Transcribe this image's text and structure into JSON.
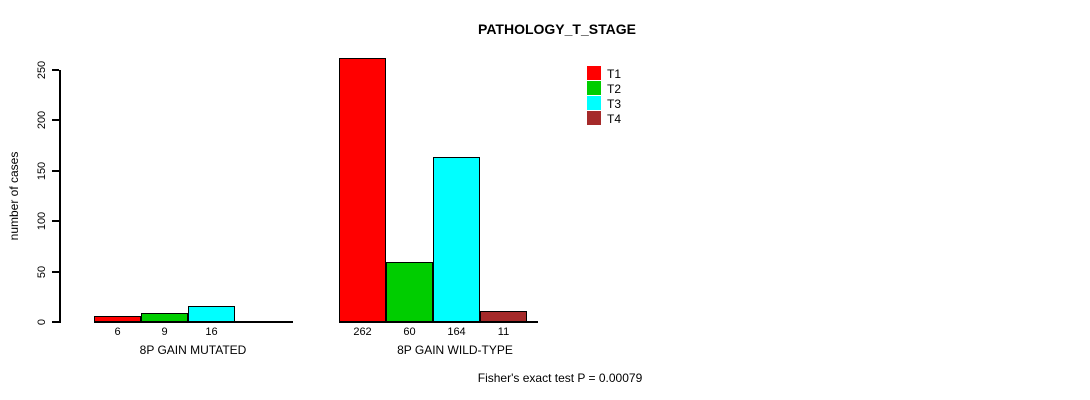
{
  "chart_data": {
    "type": "bar",
    "title": "PATHOLOGY_T_STAGE",
    "ylabel": "number of cases",
    "xlabel": "",
    "ylim": [
      0,
      250
    ],
    "yticks": [
      0,
      50,
      100,
      150,
      200,
      250
    ],
    "grid": false,
    "legend_position": "top-right",
    "categories": [
      "8P GAIN MUTATED",
      "8P GAIN WILD-TYPE"
    ],
    "series": [
      {
        "name": "T1",
        "color": "#FF0000",
        "values": [
          6,
          262
        ]
      },
      {
        "name": "T2",
        "color": "#00CD00",
        "values": [
          9,
          60
        ]
      },
      {
        "name": "T3",
        "color": "#00FFFF",
        "values": [
          16,
          164
        ]
      },
      {
        "name": "T4",
        "color": "#A52A2A",
        "values": [
          0,
          11
        ]
      }
    ],
    "bar_value_labels": [
      [
        "6",
        "9",
        "16",
        ""
      ],
      [
        "262",
        "60",
        "164",
        "11"
      ]
    ],
    "annotation": "Fisher's exact test P = 0.00079"
  }
}
